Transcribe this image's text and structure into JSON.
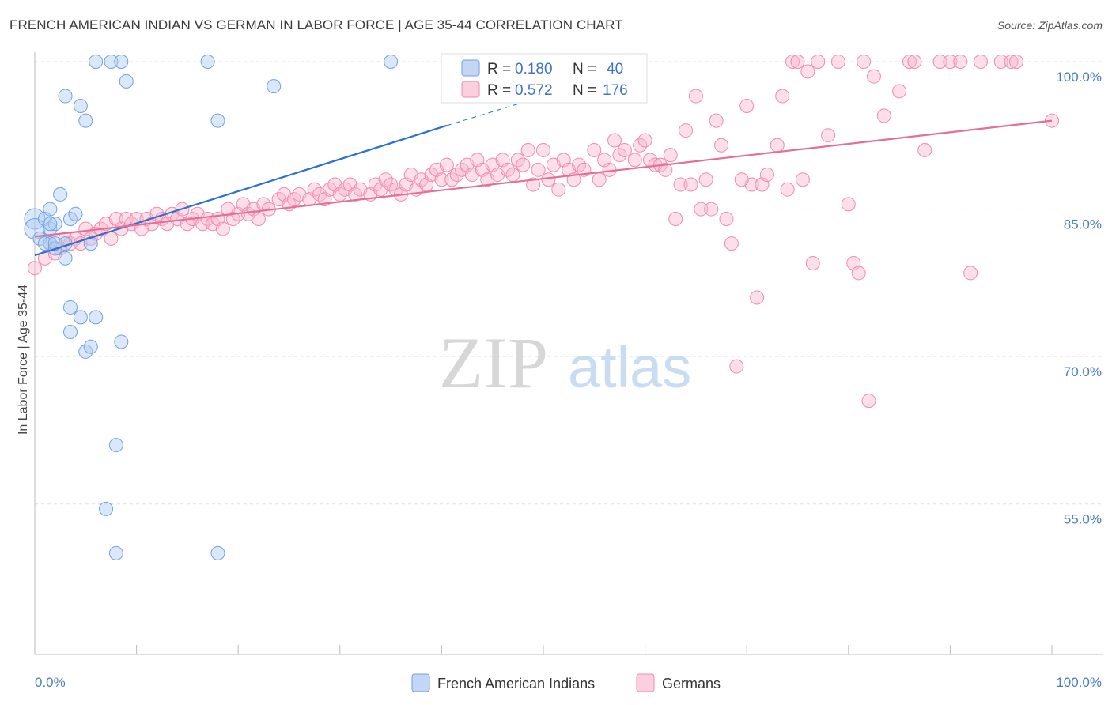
{
  "title": "FRENCH AMERICAN INDIAN VS GERMAN IN LABOR FORCE | AGE 35-44 CORRELATION CHART",
  "source": "Source: ZipAtlas.com",
  "watermark": {
    "zip": "ZIP",
    "atlas": "atlas"
  },
  "chart_data": {
    "type": "scatter",
    "ylabel": "In Labor Force | Age 35-44",
    "x_tick_labels": [
      "0.0%",
      "100.0%"
    ],
    "y_tick_labels": [
      "100.0%",
      "85.0%",
      "70.0%",
      "55.0%"
    ],
    "y_ticks": [
      100,
      85,
      70,
      55
    ],
    "xlim": [
      0,
      100
    ],
    "ylim": [
      40,
      101
    ],
    "grid": true,
    "legend_position": "top-center",
    "colors": {
      "french": "#6fa0e6",
      "german": "#f08aad",
      "french_line": "#2b6fcf",
      "german_line": "#e56d97"
    },
    "legend": [
      {
        "r_label": "R =",
        "r_value": "0.180",
        "n_label": "N =",
        "n_value": "40"
      },
      {
        "r_label": "R =",
        "r_value": "0.572",
        "n_label": "N =",
        "n_value": "176"
      }
    ],
    "series": [
      {
        "name": "French American Indians",
        "trend": {
          "x": [
            0,
            40.5
          ],
          "y": [
            80.3,
            93.5
          ],
          "dashed_to": [
            51,
            96.8
          ]
        },
        "points": [
          [
            0,
            84
          ],
          [
            0,
            83
          ],
          [
            0.5,
            82
          ],
          [
            1.5,
            81.5
          ],
          [
            1,
            81.5
          ],
          [
            1,
            84
          ],
          [
            1.5,
            85
          ],
          [
            1.5,
            83
          ],
          [
            2,
            83.5
          ],
          [
            2,
            81
          ],
          [
            2,
            81.5
          ],
          [
            2.5,
            86.5
          ],
          [
            3,
            81.5
          ],
          [
            3,
            80
          ],
          [
            3,
            96.5
          ],
          [
            3.5,
            84
          ],
          [
            3.5,
            75
          ],
          [
            3.5,
            72.5
          ],
          [
            4,
            84.5
          ],
          [
            4.5,
            95.5
          ],
          [
            4.5,
            74
          ],
          [
            5,
            94
          ],
          [
            5,
            70.5
          ],
          [
            5.5,
            71
          ],
          [
            5.5,
            81.5
          ],
          [
            6,
            100
          ],
          [
            6,
            74
          ],
          [
            7.5,
            100
          ],
          [
            8,
            61
          ],
          [
            8,
            50
          ],
          [
            8.5,
            71.5
          ],
          [
            8.5,
            100
          ],
          [
            9,
            98
          ],
          [
            7,
            54.5
          ],
          [
            17,
            100
          ],
          [
            18,
            94
          ],
          [
            18,
            50
          ],
          [
            23.5,
            97.5
          ],
          [
            35,
            100
          ],
          [
            1.5,
            83.5
          ]
        ]
      },
      {
        "name": "Germans",
        "trend": {
          "x": [
            0,
            100
          ],
          "y": [
            82.2,
            94
          ]
        },
        "points": [
          [
            0,
            79
          ],
          [
            1,
            80
          ],
          [
            1.5,
            81.5
          ],
          [
            2,
            80.5
          ],
          [
            2.5,
            81
          ],
          [
            3,
            82
          ],
          [
            3.5,
            81.5
          ],
          [
            4,
            82
          ],
          [
            4.5,
            81.5
          ],
          [
            5,
            83
          ],
          [
            5.5,
            82
          ],
          [
            6,
            82.5
          ],
          [
            6.5,
            83
          ],
          [
            7,
            83.5
          ],
          [
            7.5,
            82
          ],
          [
            8,
            84
          ],
          [
            8.5,
            83
          ],
          [
            9,
            84
          ],
          [
            9.5,
            83.5
          ],
          [
            10,
            84
          ],
          [
            10.5,
            83
          ],
          [
            11,
            84
          ],
          [
            11.5,
            83.5
          ],
          [
            12,
            84.5
          ],
          [
            12.5,
            84
          ],
          [
            13,
            83.5
          ],
          [
            13.5,
            84.5
          ],
          [
            14,
            84
          ],
          [
            14.5,
            85
          ],
          [
            15,
            83.5
          ],
          [
            15.5,
            84
          ],
          [
            16,
            84.5
          ],
          [
            16.5,
            83.5
          ],
          [
            17,
            84
          ],
          [
            17.5,
            83.5
          ],
          [
            18,
            84
          ],
          [
            18.5,
            83
          ],
          [
            19,
            85
          ],
          [
            19.5,
            84
          ],
          [
            20,
            84.5
          ],
          [
            20.5,
            85.5
          ],
          [
            21,
            84.5
          ],
          [
            21.5,
            85
          ],
          [
            22,
            84
          ],
          [
            22.5,
            85.5
          ],
          [
            23,
            85
          ],
          [
            24,
            86
          ],
          [
            24.5,
            86.5
          ],
          [
            25,
            85.5
          ],
          [
            25.5,
            86
          ],
          [
            26,
            86.5
          ],
          [
            27,
            86
          ],
          [
            27.5,
            87
          ],
          [
            28,
            86.5
          ],
          [
            28.5,
            86
          ],
          [
            29,
            87
          ],
          [
            29.5,
            87.5
          ],
          [
            30,
            86.5
          ],
          [
            30.5,
            87
          ],
          [
            31,
            87.5
          ],
          [
            31.5,
            86.5
          ],
          [
            32,
            87
          ],
          [
            33,
            86.5
          ],
          [
            33.5,
            87.5
          ],
          [
            34,
            87
          ],
          [
            34.5,
            88
          ],
          [
            35,
            87.5
          ],
          [
            35.5,
            87
          ],
          [
            36,
            86.5
          ],
          [
            36.5,
            87.5
          ],
          [
            37,
            88.5
          ],
          [
            37.5,
            87
          ],
          [
            38,
            88
          ],
          [
            38.5,
            87.5
          ],
          [
            39,
            88.5
          ],
          [
            39.5,
            89
          ],
          [
            40,
            88
          ],
          [
            40.5,
            89.5
          ],
          [
            41,
            88
          ],
          [
            41.5,
            88.5
          ],
          [
            42,
            89
          ],
          [
            42.5,
            89.5
          ],
          [
            43,
            88.5
          ],
          [
            43.5,
            90
          ],
          [
            44,
            89
          ],
          [
            44.5,
            88
          ],
          [
            45,
            89.5
          ],
          [
            45.5,
            88.5
          ],
          [
            46,
            90
          ],
          [
            46.5,
            89
          ],
          [
            47,
            88.5
          ],
          [
            47.5,
            90
          ],
          [
            48,
            89.5
          ],
          [
            48.5,
            91
          ],
          [
            49,
            87.5
          ],
          [
            49.5,
            89
          ],
          [
            50,
            91
          ],
          [
            50.5,
            88
          ],
          [
            51,
            89.5
          ],
          [
            51.5,
            87
          ],
          [
            52,
            90
          ],
          [
            52.5,
            89
          ],
          [
            53,
            88
          ],
          [
            53.5,
            89.5
          ],
          [
            54,
            89
          ],
          [
            55,
            91
          ],
          [
            55.5,
            88
          ],
          [
            56,
            90
          ],
          [
            56.5,
            89
          ],
          [
            57,
            92
          ],
          [
            57.5,
            90.5
          ],
          [
            58,
            91
          ],
          [
            59,
            90
          ],
          [
            59.5,
            91.5
          ],
          [
            60,
            92
          ],
          [
            60.5,
            90
          ],
          [
            61,
            89.5
          ],
          [
            61.5,
            89.5
          ],
          [
            62,
            89
          ],
          [
            62.5,
            90.5
          ],
          [
            63,
            84
          ],
          [
            63.5,
            87.5
          ],
          [
            64,
            93
          ],
          [
            64.5,
            87.5
          ],
          [
            65,
            96.5
          ],
          [
            65.5,
            85
          ],
          [
            66,
            88
          ],
          [
            66.5,
            85
          ],
          [
            67,
            94
          ],
          [
            67.5,
            91.5
          ],
          [
            68,
            84
          ],
          [
            68.5,
            81.5
          ],
          [
            69,
            69
          ],
          [
            70,
            95.5
          ],
          [
            70.5,
            87.5
          ],
          [
            71,
            76
          ],
          [
            71.5,
            87.5
          ],
          [
            72,
            88.5
          ],
          [
            73,
            91.5
          ],
          [
            74,
            87
          ],
          [
            74.5,
            100
          ],
          [
            75,
            100
          ],
          [
            76,
            99
          ],
          [
            76.5,
            79.5
          ],
          [
            77,
            100
          ],
          [
            78,
            92.5
          ],
          [
            79,
            100
          ],
          [
            80,
            85.5
          ],
          [
            80.5,
            79.5
          ],
          [
            81,
            78.5
          ],
          [
            81.5,
            100
          ],
          [
            82,
            65.5
          ],
          [
            82.5,
            98.5
          ],
          [
            83.5,
            94.5
          ],
          [
            85,
            97
          ],
          [
            86,
            100
          ],
          [
            86.5,
            100
          ],
          [
            87.5,
            91
          ],
          [
            89,
            100
          ],
          [
            90,
            100
          ],
          [
            91,
            100
          ],
          [
            92,
            78.5
          ],
          [
            93,
            100
          ],
          [
            95,
            100
          ],
          [
            96,
            100
          ],
          [
            100,
            94
          ],
          [
            96.5,
            100
          ],
          [
            73.5,
            96.5
          ],
          [
            69.5,
            88
          ],
          [
            75.5,
            88
          ]
        ]
      }
    ]
  }
}
